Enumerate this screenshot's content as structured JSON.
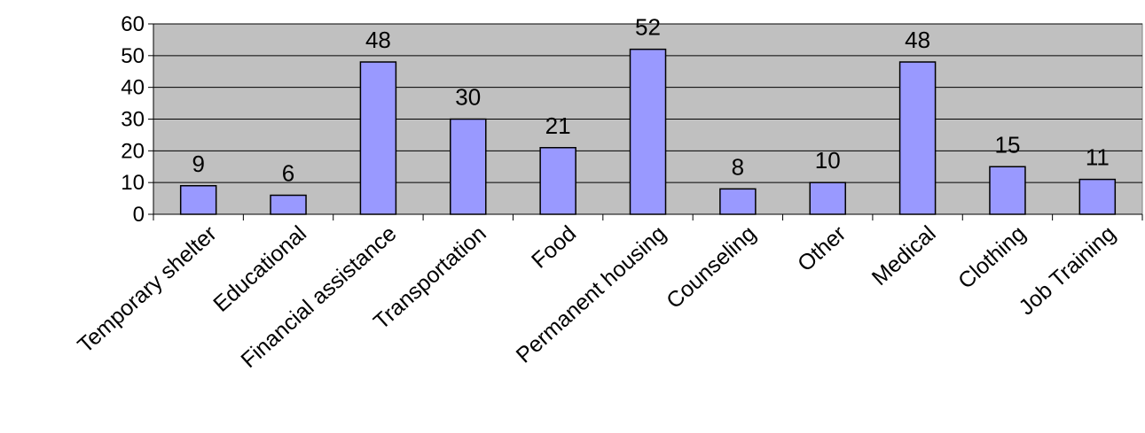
{
  "chart_data": {
    "type": "bar",
    "title": "",
    "xlabel": "",
    "ylabel": "",
    "categories": [
      "Temporary shelter",
      "Educational",
      "Financial assistance",
      "Transportation",
      "Food",
      "Permanent housing",
      "Counseling",
      "Other",
      "Medical",
      "Clothing",
      "Job Training"
    ],
    "values": [
      9,
      6,
      48,
      30,
      21,
      52,
      8,
      10,
      48,
      15,
      11
    ],
    "ylim": [
      0,
      60
    ],
    "yticks": [
      0,
      10,
      20,
      30,
      40,
      50,
      60
    ],
    "grid": true,
    "legend": "none",
    "colors": {
      "plot_background": "#c0c0c0",
      "bar_fill": "#9999ff",
      "bar_stroke": "#000000",
      "gridline": "#000000"
    }
  }
}
